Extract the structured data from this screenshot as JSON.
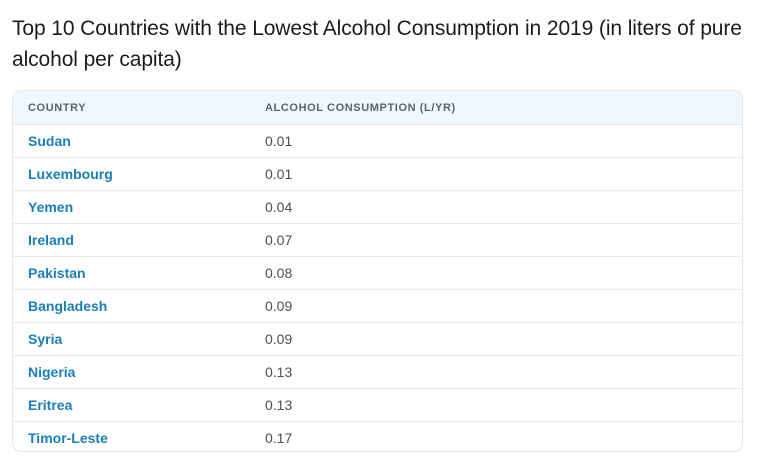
{
  "title": "Top 10 Countries with the Lowest Alcohol Consumption in 2019 (in liters of pure alcohol per capita)",
  "table": {
    "headers": [
      "COUNTRY",
      "ALCOHOL CONSUMPTION (L/YR)"
    ],
    "rows": [
      {
        "country": "Sudan",
        "value": "0.01"
      },
      {
        "country": "Luxembourg",
        "value": "0.01"
      },
      {
        "country": "Yemen",
        "value": "0.04"
      },
      {
        "country": "Ireland",
        "value": "0.07"
      },
      {
        "country": "Pakistan",
        "value": "0.08"
      },
      {
        "country": "Bangladesh",
        "value": "0.09"
      },
      {
        "country": "Syria",
        "value": "0.09"
      },
      {
        "country": "Nigeria",
        "value": "0.13"
      },
      {
        "country": "Eritrea",
        "value": "0.13"
      },
      {
        "country": "Timor-Leste",
        "value": "0.17"
      }
    ]
  },
  "colors": {
    "country_link": "#1a7fb5",
    "header_bg": "#f1f8fd",
    "header_text": "#5a6470",
    "border": "#e3e6ea"
  }
}
